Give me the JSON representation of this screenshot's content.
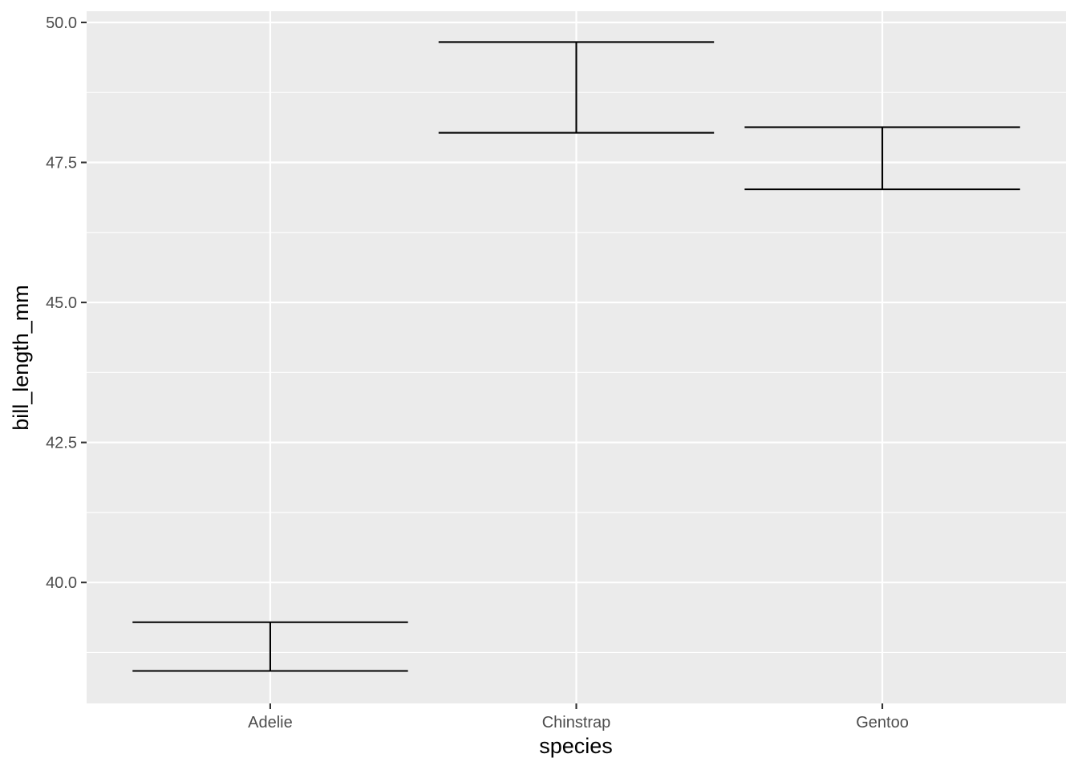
{
  "chart_data": {
    "type": "errorbar",
    "xlabel": "species",
    "ylabel": "bill_length_mm",
    "categories": [
      "Adelie",
      "Chinstrap",
      "Gentoo"
    ],
    "series": [
      {
        "lower": [
          38.42,
          48.03,
          47.02
        ],
        "upper": [
          39.29,
          49.65,
          48.13
        ]
      }
    ],
    "ylim": [
      37.84,
      50.2
    ],
    "y_ticks": [
      40.0,
      42.5,
      45.0,
      47.5,
      50.0
    ],
    "y_tick_labels": [
      "40.0",
      "42.5",
      "45.0",
      "47.5",
      "50.0"
    ],
    "y_minor_ticks": [
      38.75,
      41.25,
      43.75,
      46.25,
      48.75
    ],
    "grid": true,
    "colors": {
      "panel": "#ebebeb",
      "grid": "#ffffff",
      "mark": "#000000",
      "tick_text": "#4d4d4d",
      "tick": "#333333"
    }
  }
}
